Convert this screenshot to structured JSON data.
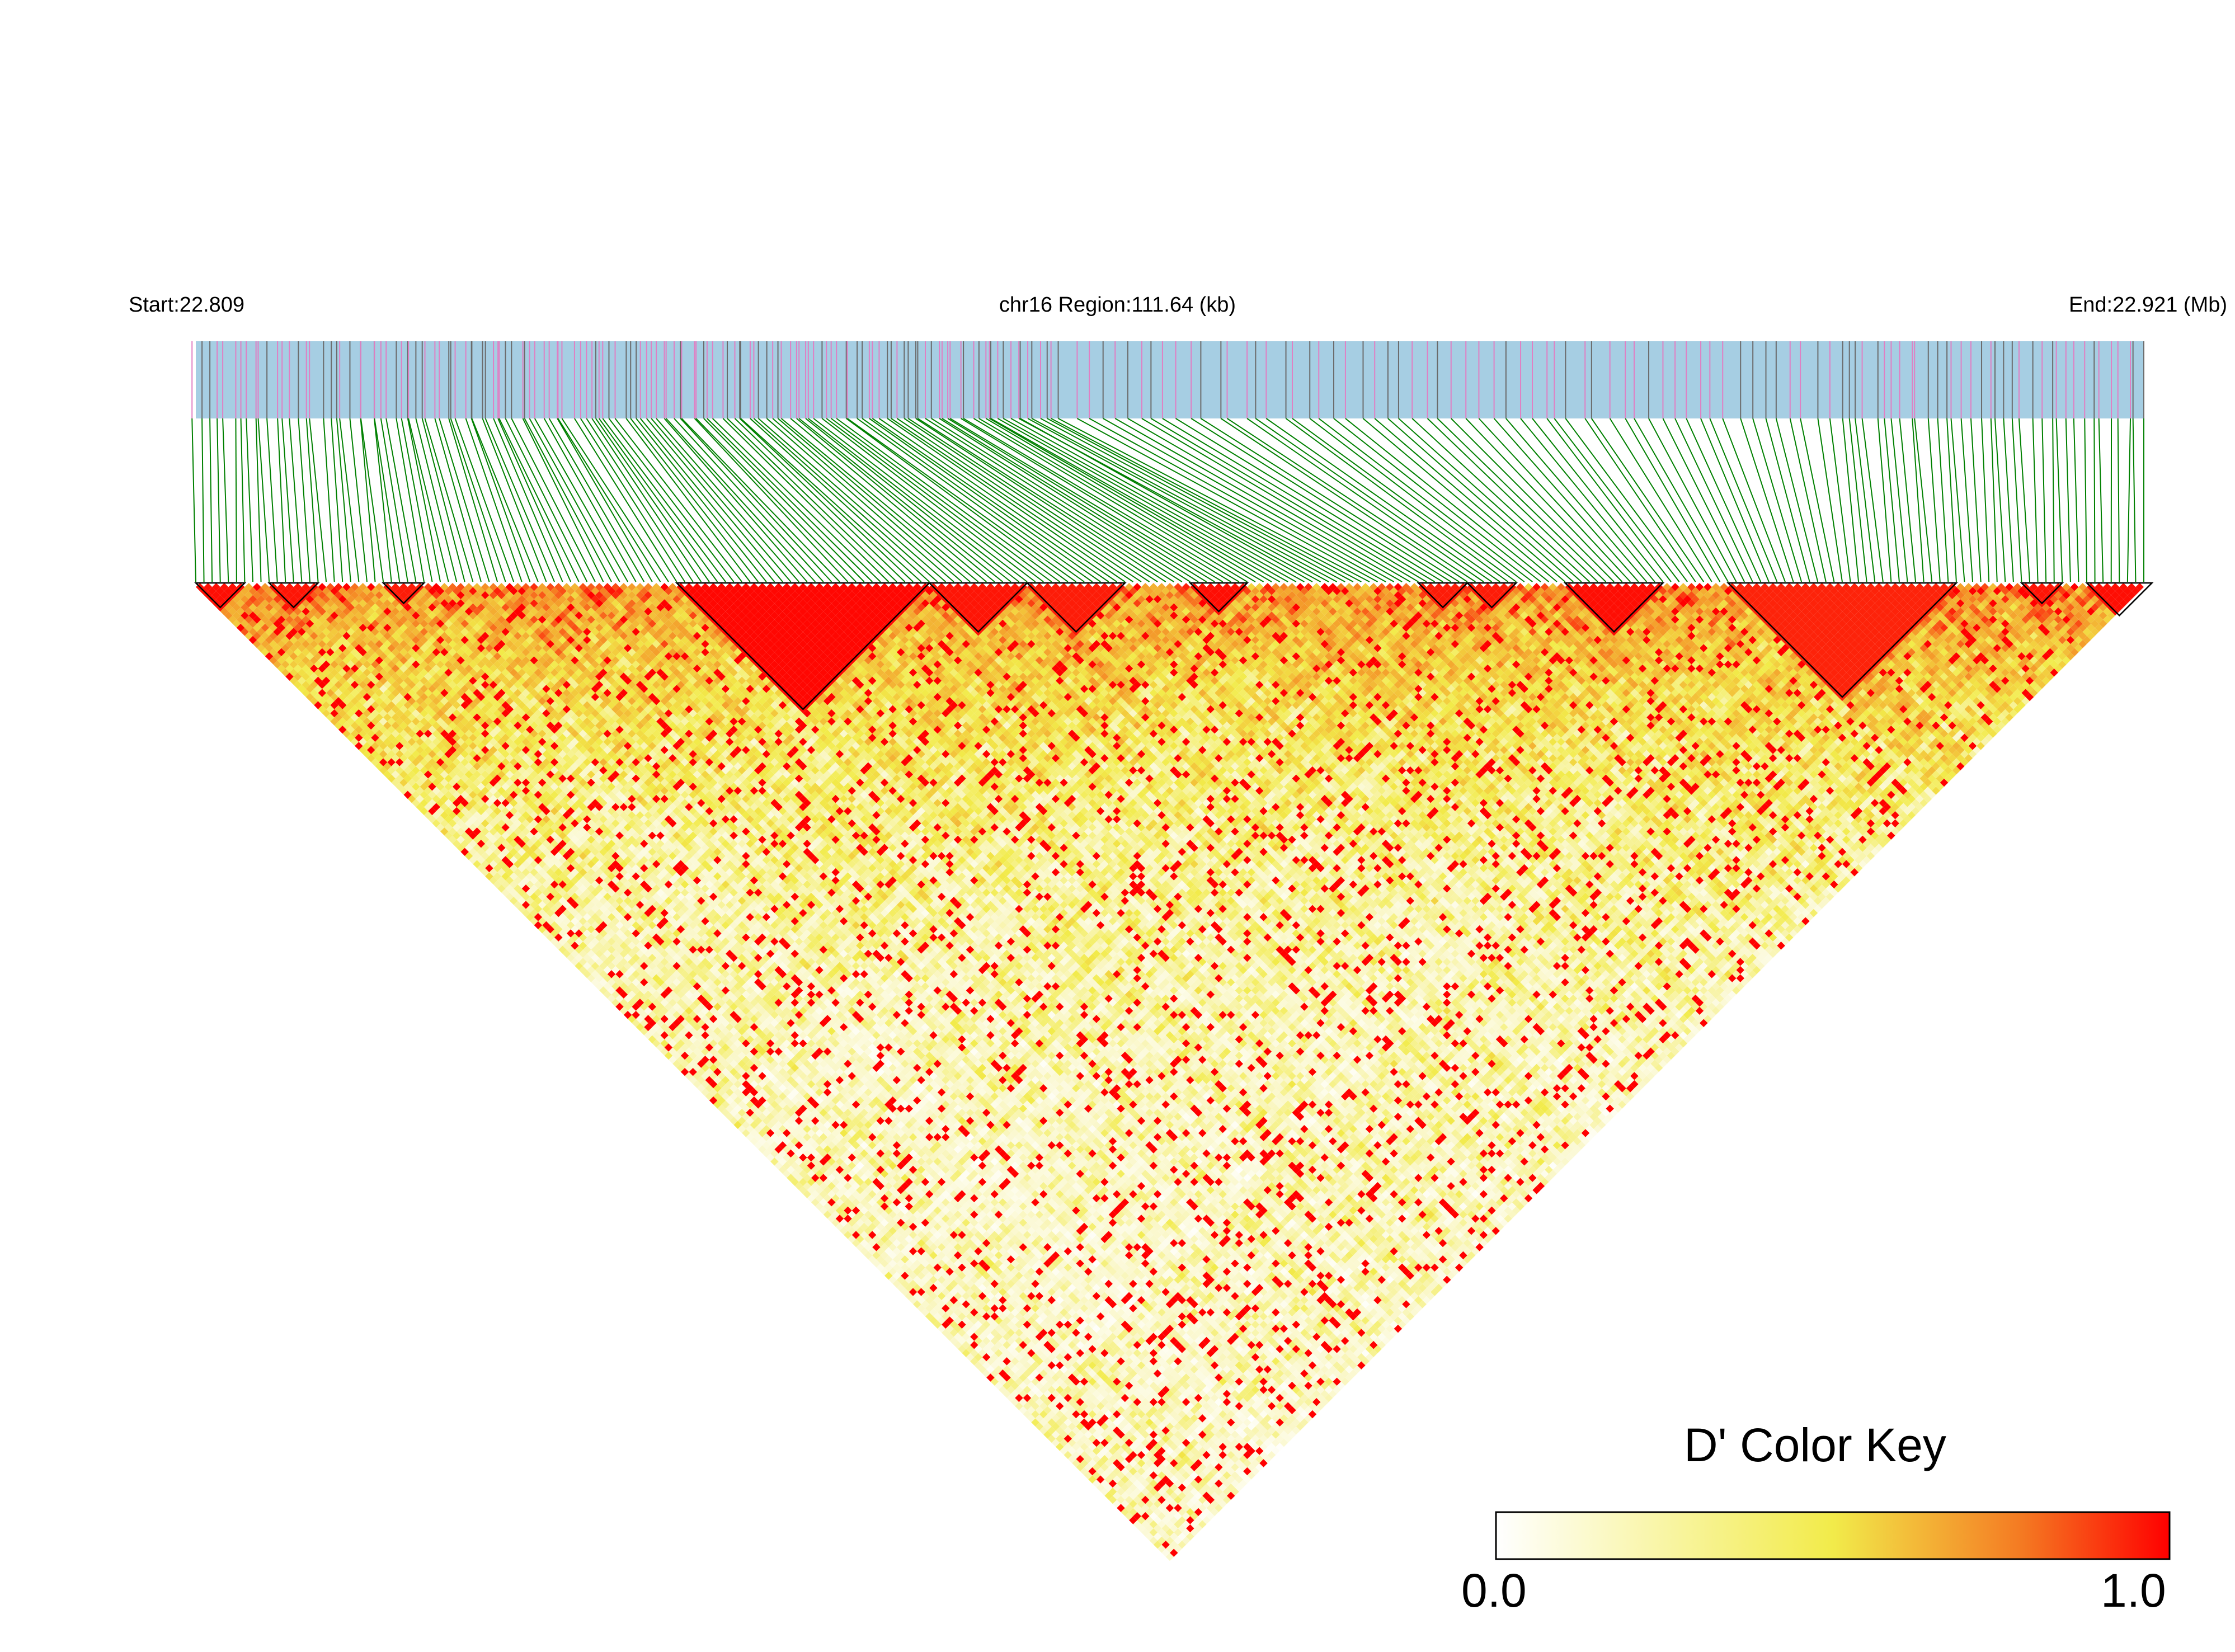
{
  "header": {
    "start_label": "Start:22.809",
    "region_label": "chr16 Region:111.64 (kb)",
    "end_label": "End:22.921 (Mb)"
  },
  "color_key": {
    "title": "D' Color Key",
    "min_label": "0.0",
    "max_label": "1.0",
    "colors": [
      "#ffffff",
      "#f2eb4a",
      "#f49a2a",
      "#ff0000"
    ]
  },
  "chart_data": {
    "type": "heatmap",
    "subtype": "LD triangle (pairwise D')",
    "chromosome": "chr16",
    "start_mb": 22.809,
    "end_mb": 22.921,
    "region_kb": 111.64,
    "value_name": "D'",
    "value_range": [
      0.0,
      1.0
    ],
    "snp_count": 240,
    "track_colors": {
      "background": "#a6cee3",
      "tick_a": "#e07fc3",
      "tick_b": "#6b6b6b",
      "connector": "#008000"
    },
    "blocks": [
      {
        "snp_start": 0,
        "snp_end": 6,
        "mean_d": 0.98
      },
      {
        "snp_start": 9,
        "snp_end": 15,
        "mean_d": 0.97
      },
      {
        "snp_start": 23,
        "snp_end": 28,
        "mean_d": 0.96
      },
      {
        "snp_start": 59,
        "snp_end": 90,
        "mean_d": 0.99
      },
      {
        "snp_start": 90,
        "snp_end": 102,
        "mean_d": 0.97
      },
      {
        "snp_start": 102,
        "snp_end": 114,
        "mean_d": 0.96
      },
      {
        "snp_start": 122,
        "snp_end": 129,
        "mean_d": 0.98
      },
      {
        "snp_start": 150,
        "snp_end": 156,
        "mean_d": 0.96
      },
      {
        "snp_start": 156,
        "snp_end": 162,
        "mean_d": 0.96
      },
      {
        "snp_start": 168,
        "snp_end": 180,
        "mean_d": 0.98
      },
      {
        "snp_start": 188,
        "snp_end": 216,
        "mean_d": 0.95
      },
      {
        "snp_start": 224,
        "snp_end": 229,
        "mean_d": 0.97
      },
      {
        "snp_start": 232,
        "snp_end": 240,
        "mean_d": 0.98
      }
    ]
  }
}
